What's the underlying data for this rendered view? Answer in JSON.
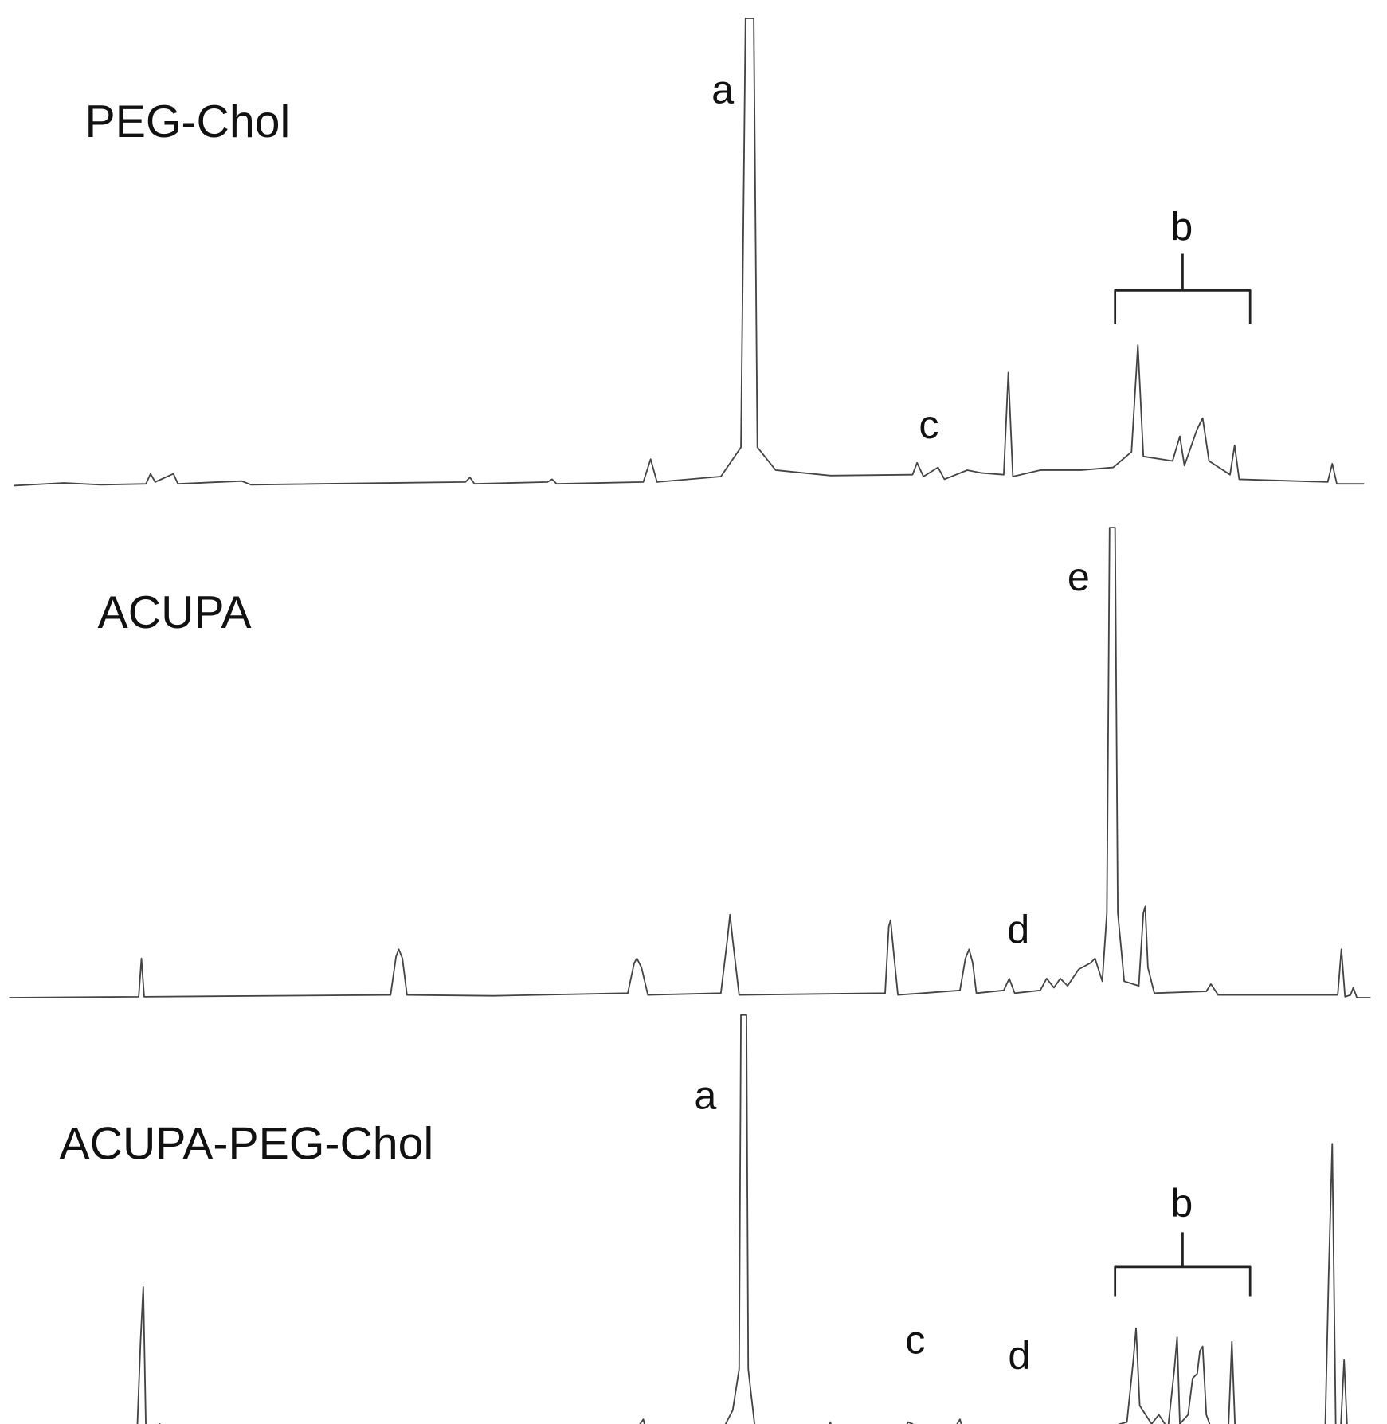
{
  "spectra": [
    {
      "name": "PEG-Chol",
      "peak_labels": [
        "a",
        "b",
        "c"
      ]
    },
    {
      "name": "ACUPA",
      "peak_labels": [
        "e",
        "d"
      ]
    },
    {
      "name": "ACUPA-PEG-Chol",
      "peak_labels": [
        "a",
        "b",
        "c",
        "d"
      ]
    }
  ]
}
